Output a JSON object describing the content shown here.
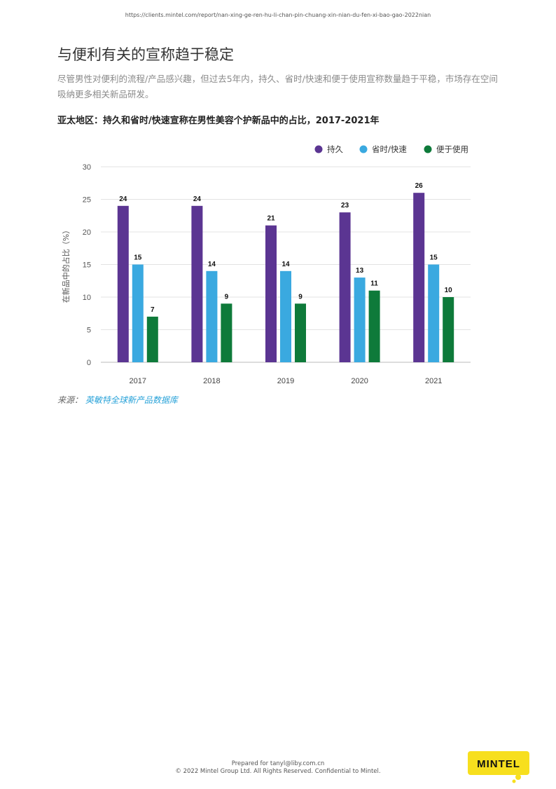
{
  "url": "https://clients.mintel.com/report/nan-xing-ge-ren-hu-li-chan-pin-chuang-xin-nian-du-fen-xi-bao-gao-2022nian",
  "title": "与便利有关的宣称趋于稳定",
  "description": "尽管男性对便利的流程/产品感兴趣，但过去5年内，持久、省时/快速和便于使用宣称数量趋于平稳，市场存在空间吸纳更多相关新品研发。",
  "chart_title": "亚太地区：持久和省时/快速宣称在男性美容个护新品中的占比，2017-2021年",
  "source_label": "来源：",
  "source_link": "英敏特全球新产品数据库",
  "footer": {
    "line1": "Prepared for tanyl@liby.com.cn",
    "line2": "© 2022 Mintel Group Ltd. All Rights Reserved. Confidential to Mintel."
  },
  "logo_text": "MINTEL",
  "colors": {
    "purple": "#5b3592",
    "blue": "#3aa9e0",
    "green": "#0e7a3a",
    "logo_yellow": "#f7df1e"
  },
  "chart_data": {
    "type": "bar",
    "categories": [
      "2017",
      "2018",
      "2019",
      "2020",
      "2021"
    ],
    "series": [
      {
        "name": "持久",
        "color": "#5b3592",
        "values": [
          24,
          24,
          21,
          23,
          26
        ]
      },
      {
        "name": "省时/快速",
        "color": "#3aa9e0",
        "values": [
          15,
          14,
          14,
          13,
          15
        ]
      },
      {
        "name": "便于使用",
        "color": "#0e7a3a",
        "values": [
          7,
          9,
          9,
          11,
          10
        ]
      }
    ],
    "ylabel": "在新品中的占比（%）",
    "ylim": [
      0,
      30
    ],
    "yticks": [
      0,
      5,
      10,
      15,
      20,
      25,
      30
    ],
    "grid": true,
    "legend_position": "top-right"
  }
}
